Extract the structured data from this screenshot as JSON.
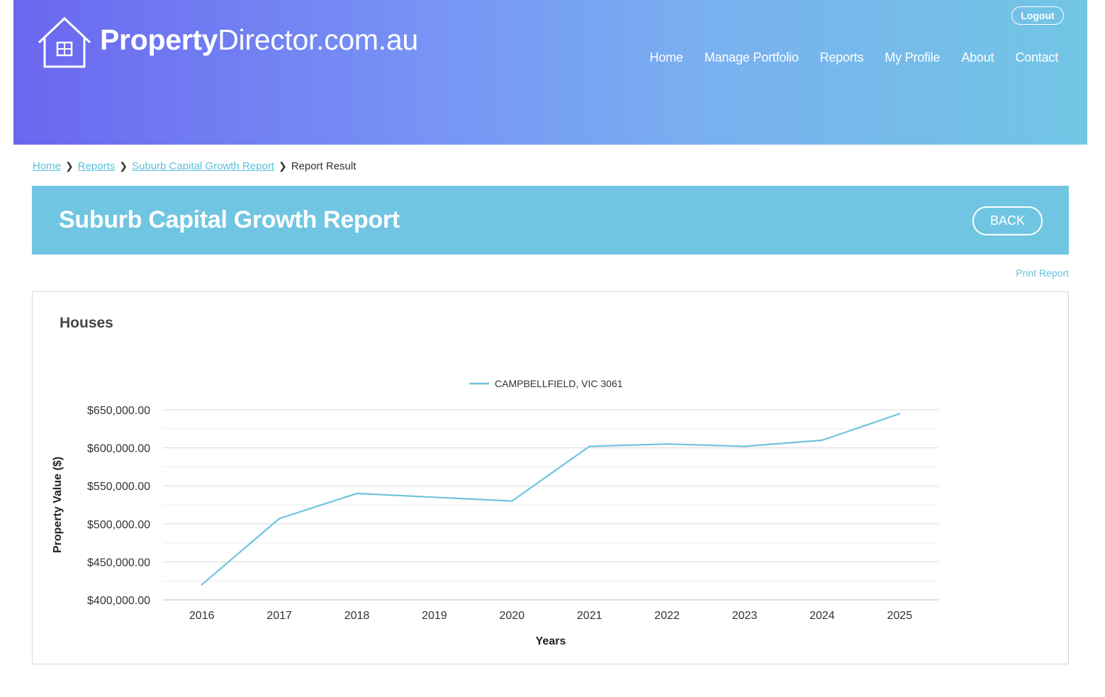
{
  "header": {
    "logo_bold": "Property",
    "logo_rest": "Director.com.au",
    "logout_label": "Logout",
    "nav": [
      "Home",
      "Manage Portfolio",
      "Reports",
      "My Profile",
      "About",
      "Contact"
    ]
  },
  "breadcrumb": {
    "items": [
      "Home",
      "Reports",
      "Suburb Capital Growth Report"
    ],
    "current": "Report Result"
  },
  "banner": {
    "title": "Suburb Capital Growth Report",
    "back_label": "BACK"
  },
  "print_label": "Print Report",
  "panel": {
    "title": "Houses"
  },
  "colors": {
    "line": "#6fc4de",
    "banner": "#70c6e2",
    "link": "#5cbfdc"
  },
  "chart_data": {
    "type": "line",
    "xlabel": "Years",
    "ylabel": "Property Value ($)",
    "categories": [
      "2016",
      "2017",
      "2018",
      "2019",
      "2020",
      "2021",
      "2022",
      "2023",
      "2024",
      "2025"
    ],
    "series": [
      {
        "name": "CAMPBELLFIELD, VIC 3061",
        "values": [
          420000,
          507000,
          540000,
          535000,
          530000,
          602000,
          605000,
          602000,
          610000,
          645000
        ]
      }
    ],
    "ylim": [
      400000,
      650000
    ],
    "yticks": [
      "$400,000.00",
      "$450,000.00",
      "$500,000.00",
      "$550,000.00",
      "$600,000.00",
      "$650,000.00"
    ],
    "legend_position": "top-center",
    "grid": true
  }
}
